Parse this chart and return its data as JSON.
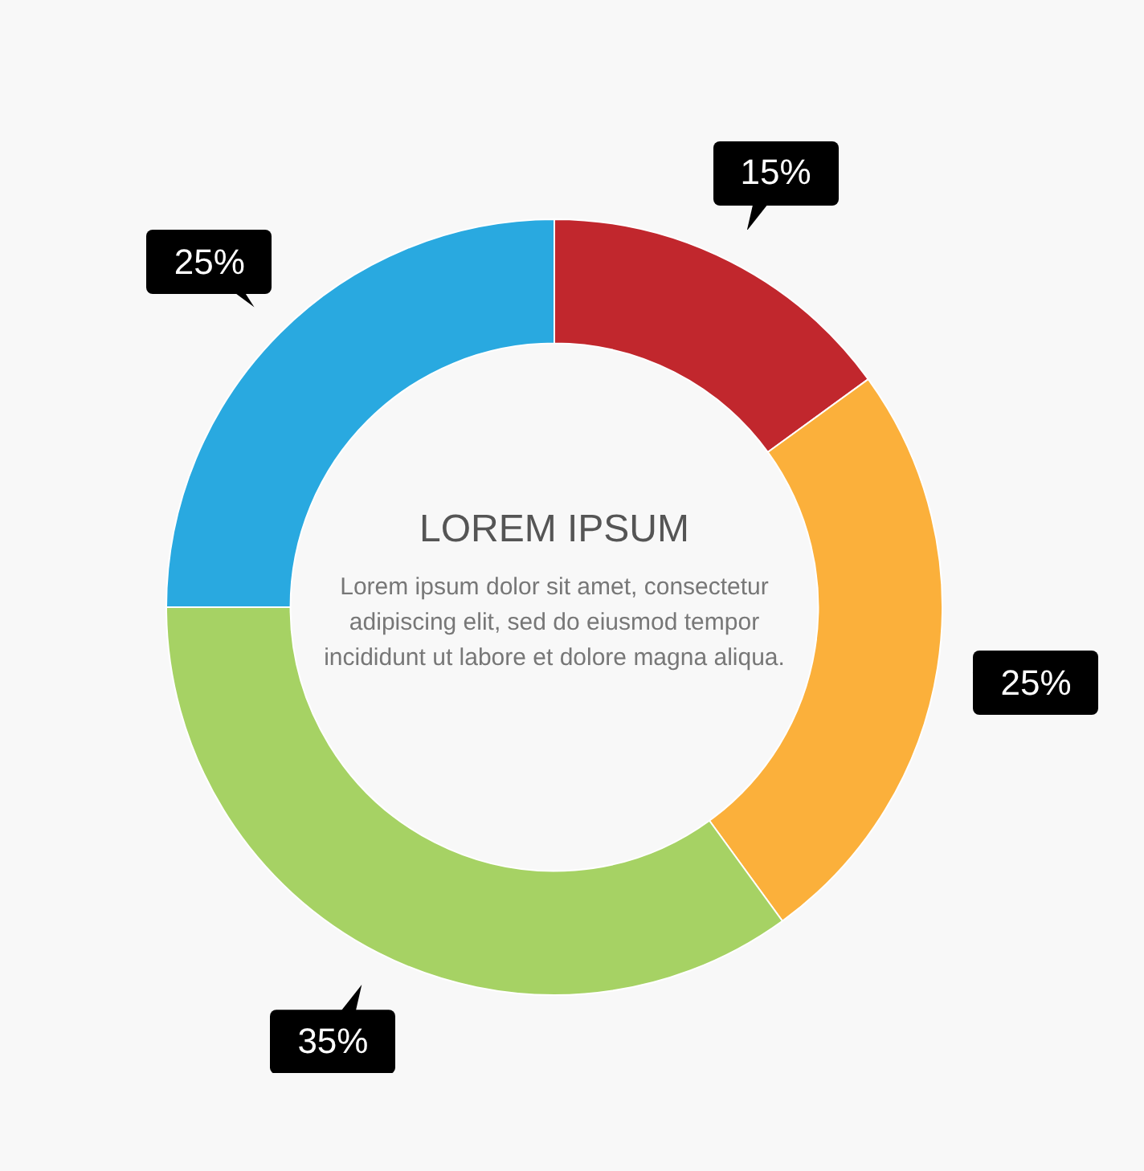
{
  "chart_data": {
    "type": "donut",
    "title": "LOREM IPSUM",
    "subtitle": "Lorem ipsum dolor sit amet, consectetur adipiscing elit, sed do eiusmod tempor incididunt ut labore et dolore magna aliqua.",
    "categories": [
      null,
      null,
      null,
      null
    ],
    "values": [
      15,
      25,
      35,
      25
    ],
    "colors": [
      "#c1272d",
      "#fbb03b",
      "#a6d264",
      "#29a9e0"
    ],
    "value_labels": [
      "15%",
      "25%",
      "35%",
      "25%"
    ],
    "legend": false
  }
}
